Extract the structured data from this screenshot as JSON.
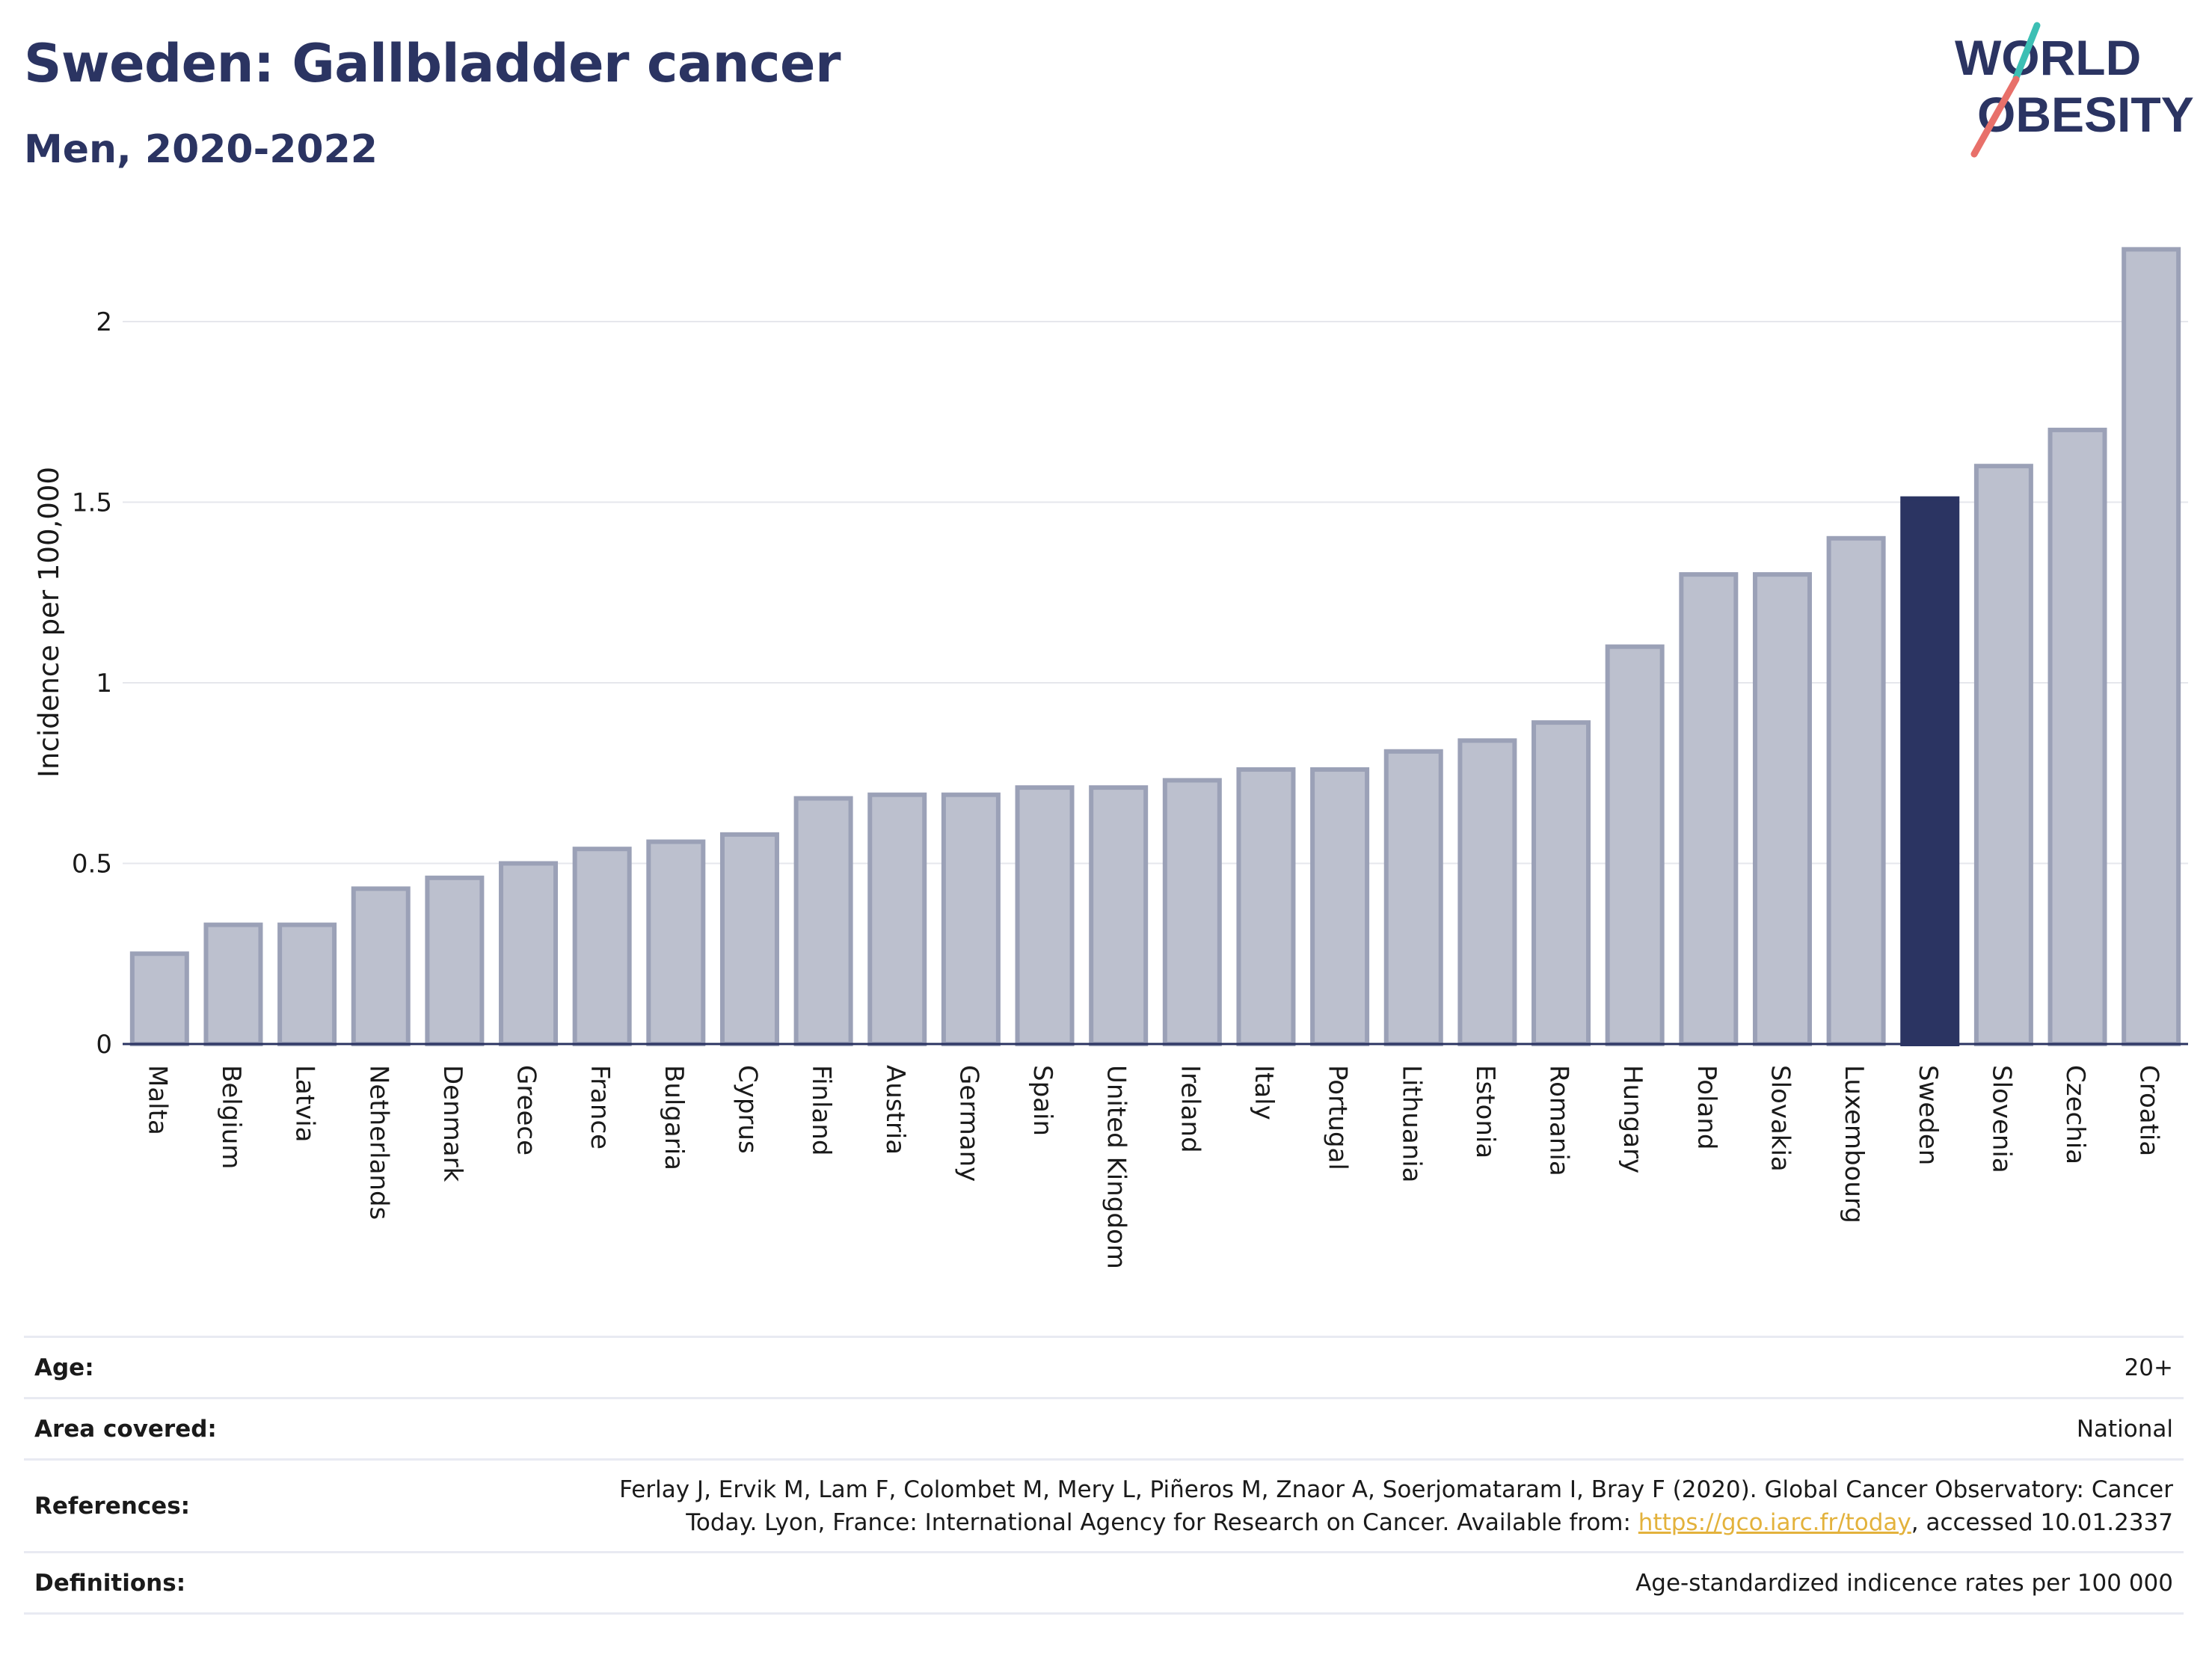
{
  "header": {
    "title": "Sweden: Gallbladder cancer",
    "subtitle": "Men, 2020-2022",
    "logo_text_line1": "WORLD",
    "logo_text_line2": "OBESITY"
  },
  "colors": {
    "highlight_bar": "#2b3462",
    "other_bar_fill": "#bcc0ce",
    "other_bar_stroke": "#9ba1b7",
    "logo_text": "#2b3462",
    "logo_slash_teal": "#3cbfb4",
    "logo_slash_coral": "#e8706a",
    "link": "#e3b23c"
  },
  "chart_data": {
    "type": "bar",
    "categories": [
      "Malta",
      "Belgium",
      "Latvia",
      "Netherlands",
      "Denmark",
      "Greece",
      "France",
      "Bulgaria",
      "Cyprus",
      "Finland",
      "Austria",
      "Germany",
      "Spain",
      "United Kingdom",
      "Ireland",
      "Italy",
      "Portugal",
      "Lithuania",
      "Estonia",
      "Romania",
      "Hungary",
      "Poland",
      "Slovakia",
      "Luxembourg",
      "Sweden",
      "Slovenia",
      "Czechia",
      "Croatia"
    ],
    "values": [
      0.25,
      0.33,
      0.33,
      0.43,
      0.46,
      0.5,
      0.54,
      0.56,
      0.58,
      0.68,
      0.69,
      0.69,
      0.71,
      0.71,
      0.73,
      0.76,
      0.76,
      0.81,
      0.84,
      0.89,
      1.1,
      1.3,
      1.3,
      1.4,
      1.51,
      1.6,
      1.7,
      2.2
    ],
    "highlight": "Sweden",
    "title": "Sweden: Gallbladder cancer",
    "xlabel": "",
    "ylabel": "Incidence per 100,000",
    "ylim": [
      0,
      2.2
    ],
    "yticks": [
      0,
      0.5,
      1,
      1.5,
      2
    ],
    "ytick_labels": [
      "0",
      "0.5",
      "1",
      "1.5",
      "2"
    ],
    "grid": true
  },
  "footer": {
    "rows": [
      {
        "label": "Age:",
        "value": "20+"
      },
      {
        "label": "Area covered:",
        "value": "National"
      },
      {
        "label": "References:",
        "value_line1": "Ferlay J, Ervik M, Lam F, Colombet M, Mery L, Piñeros M, Znaor A, Soerjomataram I, Bray F (2020). Global Cancer Observatory: Cancer",
        "value_line2_before": "Today. Lyon, France: International Agency for Research on Cancer. Available from: ",
        "link_text": "https://gco.iarc.fr/today",
        "value_line2_after": ", accessed 10.01.2337"
      },
      {
        "label": "Definitions:",
        "value": "Age-standardized indicence rates per 100 000"
      }
    ]
  }
}
